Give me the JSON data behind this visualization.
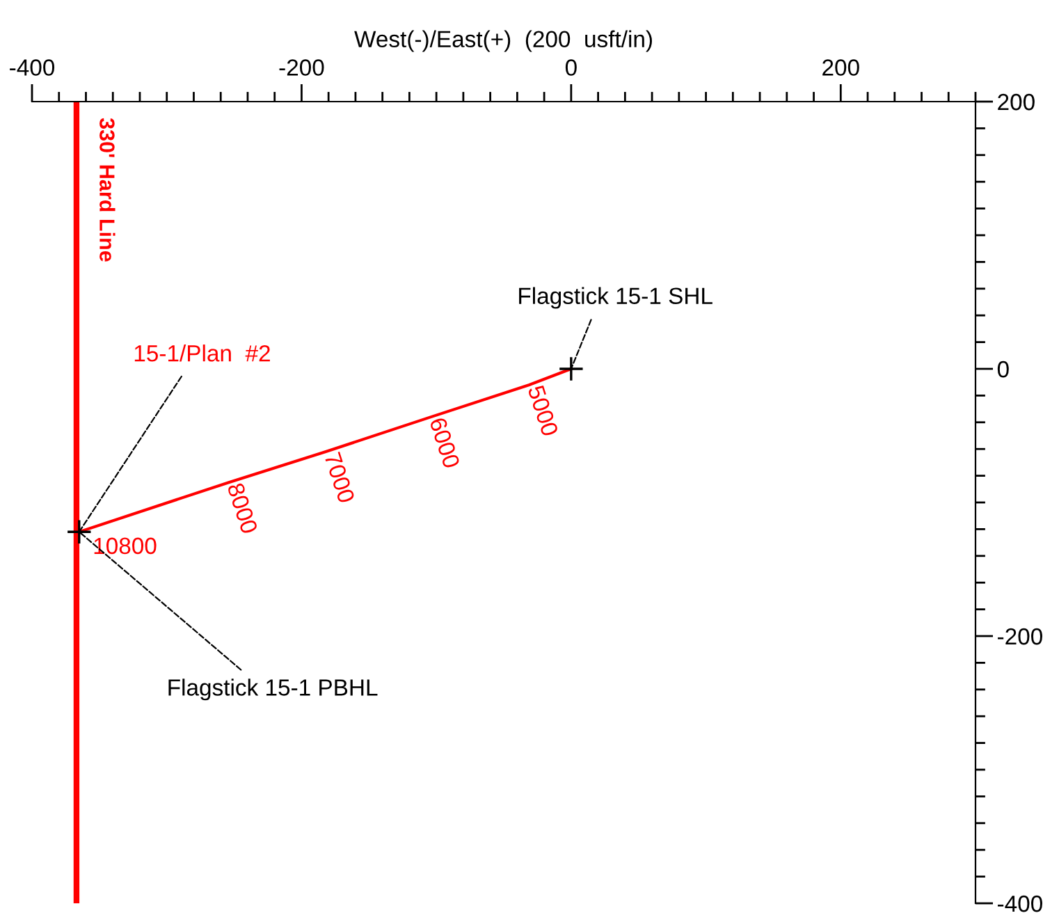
{
  "chart_data": {
    "type": "line",
    "xlabel": "West(-)/East(+)  (200  usft/in)",
    "xlim": [
      -400,
      300
    ],
    "ylim": [
      -400,
      200
    ],
    "xticks": [
      -400,
      {
        "value": -380,
        "label": null
      },
      {
        "value": -360,
        "label": null
      },
      {
        "value": -340,
        "label": null
      },
      {
        "value": -320,
        "label": null
      },
      {
        "value": -300,
        "label": null
      },
      {
        "value": -280,
        "label": null
      },
      {
        "value": -260,
        "label": null
      },
      {
        "value": -240,
        "label": null
      },
      {
        "value": -220,
        "label": null
      },
      -200,
      {
        "value": -180,
        "label": null
      },
      {
        "value": -160,
        "label": null
      },
      {
        "value": -140,
        "label": null
      },
      {
        "value": -120,
        "label": null
      },
      {
        "value": -100,
        "label": null
      },
      {
        "value": -80,
        "label": null
      },
      {
        "value": -60,
        "label": null
      },
      {
        "value": -40,
        "label": null
      },
      {
        "value": -20,
        "label": null
      },
      0,
      {
        "value": 20,
        "label": null
      },
      {
        "value": 40,
        "label": null
      },
      {
        "value": 60,
        "label": null
      },
      {
        "value": 80,
        "label": null
      },
      {
        "value": 100,
        "label": null
      },
      {
        "value": 120,
        "label": null
      },
      {
        "value": 140,
        "label": null
      },
      {
        "value": 160,
        "label": null
      },
      {
        "value": 180,
        "label": null
      },
      200,
      {
        "value": 220,
        "label": null
      },
      {
        "value": 240,
        "label": null
      },
      {
        "value": 260,
        "label": null
      },
      {
        "value": 280,
        "label": null
      },
      {
        "value": 300,
        "label": null
      }
    ],
    "yticks": [
      -400,
      {
        "value": -380,
        "label": null
      },
      {
        "value": -360,
        "label": null
      },
      {
        "value": -340,
        "label": null
      },
      {
        "value": -320,
        "label": null
      },
      {
        "value": -300,
        "label": null
      },
      {
        "value": -280,
        "label": null
      },
      {
        "value": -260,
        "label": null
      },
      {
        "value": -240,
        "label": null
      },
      {
        "value": -220,
        "label": null
      },
      -200,
      {
        "value": -180,
        "label": null
      },
      {
        "value": -160,
        "label": null
      },
      {
        "value": -140,
        "label": null
      },
      {
        "value": -120,
        "label": null
      },
      {
        "value": -100,
        "label": null
      },
      {
        "value": -80,
        "label": null
      },
      {
        "value": -60,
        "label": null
      },
      {
        "value": -40,
        "label": null
      },
      {
        "value": -20,
        "label": null
      },
      0,
      {
        "value": 20,
        "label": null
      },
      {
        "value": 40,
        "label": null
      },
      {
        "value": 60,
        "label": null
      },
      {
        "value": 80,
        "label": null
      },
      {
        "value": 100,
        "label": null
      },
      {
        "value": 120,
        "label": null
      },
      {
        "value": 140,
        "label": null
      },
      {
        "value": 160,
        "label": null
      },
      {
        "value": 180,
        "label": null
      },
      200
    ],
    "grid": false,
    "legend": false,
    "series": [
      {
        "color": "#ff0000",
        "x": [
          0,
          -31,
          -104,
          -182,
          -254,
          -365
        ],
        "values": [
          0,
          -12,
          -36,
          -62,
          -85,
          -122
        ],
        "marker": "none"
      },
      {
        "type": "scatter",
        "color": "#000000",
        "x": [
          0,
          -365
        ],
        "values": [
          0,
          -122
        ],
        "marker": "cross"
      }
    ],
    "ref_lines": [
      {
        "axis": "x",
        "value": -367,
        "label": "330' Hard Line",
        "color": "#ff0000",
        "line_style": "solid"
      }
    ],
    "annotations": [
      {
        "text": "Flagstick 15-1 SHL",
        "x": 0,
        "y": 0
      },
      {
        "text": "15-1/Plan  #2",
        "x": -365,
        "y": -122
      },
      {
        "text": "10800",
        "x": -365,
        "y": -122
      },
      {
        "text": "Flagstick 15-1 PBHL",
        "x": -365,
        "y": -122
      },
      {
        "text": "5000",
        "x": -31,
        "y": -12
      },
      {
        "text": "6000",
        "x": -104,
        "y": -36
      },
      {
        "text": "7000",
        "x": -182,
        "y": -62
      },
      {
        "text": "8000",
        "x": -254,
        "y": -85
      }
    ]
  }
}
